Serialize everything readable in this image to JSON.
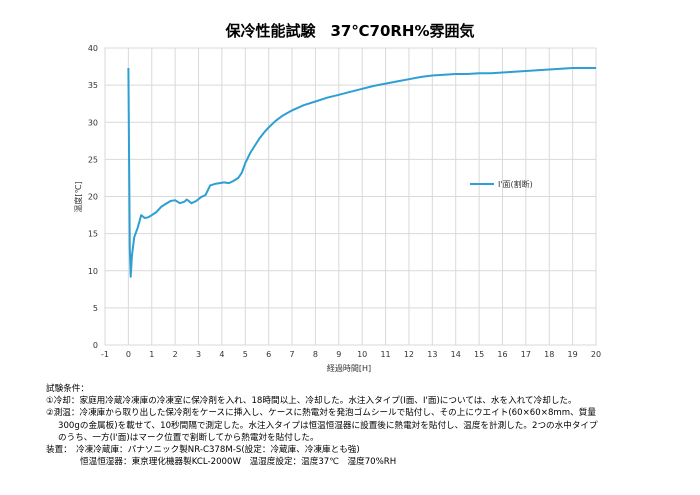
{
  "chart_data": {
    "type": "line",
    "title": "保冷性能試験　37℃70RH%雰囲気",
    "xlabel": "経過時間[H]",
    "ylabel": "温度[℃]",
    "xlim": [
      -1,
      20
    ],
    "ylim": [
      0,
      40
    ],
    "x_ticks": [
      -1,
      0,
      1,
      2,
      3,
      4,
      5,
      6,
      7,
      8,
      9,
      10,
      11,
      12,
      13,
      14,
      15,
      16,
      17,
      18,
      19,
      20
    ],
    "y_ticks": [
      0,
      5,
      10,
      15,
      20,
      25,
      30,
      35,
      40
    ],
    "grid": true,
    "legend_position": "right",
    "series": [
      {
        "name": "I'面(割断)",
        "color": "#2e9fd3",
        "x": [
          0,
          0.03,
          0.06,
          0.1,
          0.15,
          0.25,
          0.4,
          0.55,
          0.7,
          0.85,
          1.0,
          1.2,
          1.4,
          1.6,
          1.8,
          2.0,
          2.2,
          2.4,
          2.5,
          2.7,
          2.9,
          3.1,
          3.3,
          3.5,
          3.7,
          3.9,
          4.1,
          4.3,
          4.5,
          4.7,
          4.85,
          5.0,
          5.2,
          5.4,
          5.6,
          5.8,
          6.0,
          6.3,
          6.6,
          7.0,
          7.5,
          8.0,
          8.5,
          9.0,
          9.5,
          10.0,
          10.5,
          11.0,
          11.5,
          12.0,
          12.5,
          13.0,
          13.5,
          14.0,
          14.5,
          15.0,
          15.5,
          16.0,
          16.5,
          17.0,
          17.5,
          18.0,
          18.5,
          19.0,
          19.5,
          20.0
        ],
        "values": [
          37.3,
          25.0,
          13.0,
          9.2,
          12.0,
          14.5,
          15.8,
          17.5,
          17.1,
          17.2,
          17.5,
          17.9,
          18.6,
          19.0,
          19.4,
          19.5,
          19.1,
          19.3,
          19.6,
          19.1,
          19.4,
          19.9,
          20.2,
          21.5,
          21.7,
          21.8,
          21.9,
          21.8,
          22.1,
          22.5,
          23.2,
          24.5,
          25.8,
          26.8,
          27.8,
          28.6,
          29.3,
          30.2,
          30.9,
          31.6,
          32.3,
          32.8,
          33.3,
          33.7,
          34.1,
          34.5,
          34.9,
          35.2,
          35.5,
          35.8,
          36.1,
          36.3,
          36.4,
          36.5,
          36.5,
          36.6,
          36.6,
          36.7,
          36.8,
          36.9,
          37.0,
          37.1,
          37.2,
          37.3,
          37.3,
          37.3
        ]
      }
    ]
  },
  "notes": {
    "heading": "試験条件：",
    "item1": "①冷却：家庭用冷蔵冷凍庫の冷凍室に保冷剤を入れ、18時間以上、冷却した。水注入タイプ(I面、I'面)については、水を入れて冷却した。",
    "item2_line1": "②測温：冷凍庫から取り出した保冷剤をケースに挿入し、ケースに熱電対を発泡ゴムシールで貼付し、その上にウエイト(60×60×8mm、質量",
    "item2_line2": "300gの金属板)を載せて、10秒間隔で測定した。水注入タイプは恒温恒湿器に設置後に熱電対を貼付し、温度を計測した。2つの水中タイプ",
    "item2_line3": "のうち、一方(I'面)はマーク位置で割断してから熱電対を貼付した。",
    "equipment_line1": "装置：　冷凍冷蔵庫：パナソニック製NR-C378M-S(設定：冷蔵庫、冷凍庫とも強)",
    "equipment_line2": "恒温恒湿器：東京理化機器製KCL-2000W　温湿度設定：温度37℃　湿度70%RH"
  }
}
